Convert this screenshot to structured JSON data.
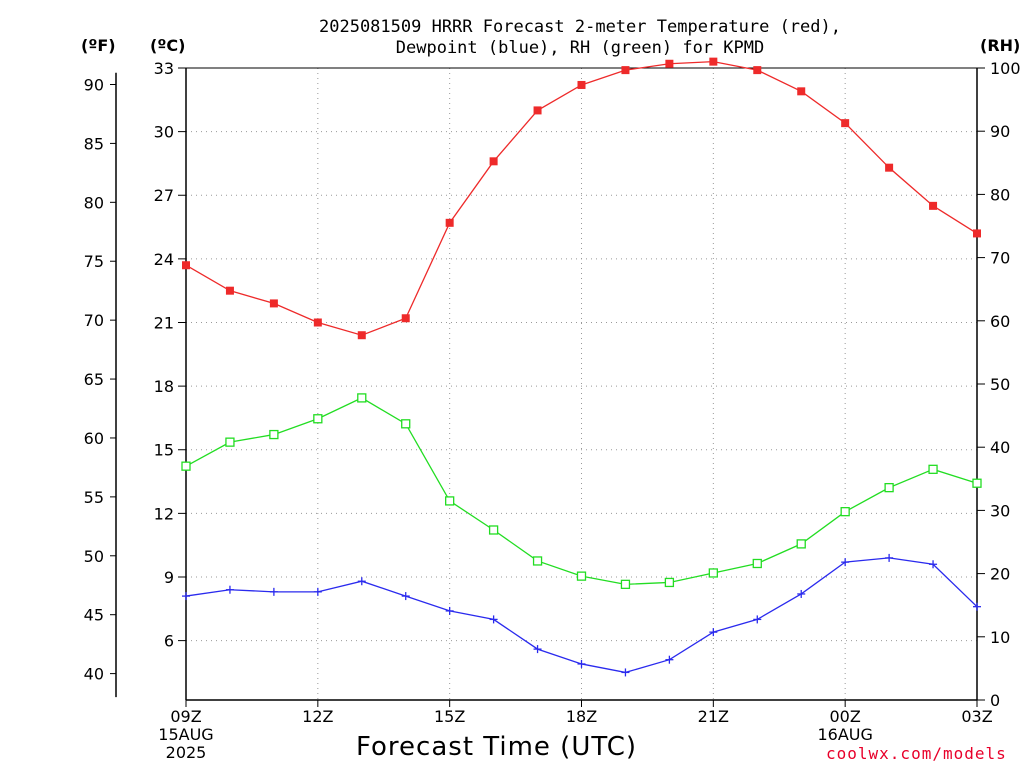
{
  "title_line1": "2025081509 HRRR Forecast 2-meter Temperature (red),",
  "title_line2": "Dewpoint (blue), RH (green) for KPMD",
  "unit_f": "(ºF)",
  "unit_c": "(ºC)",
  "unit_rh": "(RH)",
  "xlabel": "Forecast Time (UTC)",
  "credit": "coolwx.com/models",
  "colors": {
    "temperature": "#ee2a2a",
    "dewpoint": "#2a2aee",
    "rh": "#22dd22",
    "grid": "#999999"
  },
  "chart_data": {
    "type": "line",
    "title": "2025081509 HRRR Forecast 2-meter Temperature (red), Dewpoint (blue), RH (green) for KPMD",
    "xlabel": "Forecast Time (UTC)",
    "x": [
      "09Z",
      "10Z",
      "11Z",
      "12Z",
      "13Z",
      "14Z",
      "15Z",
      "16Z",
      "17Z",
      "18Z",
      "19Z",
      "20Z",
      "21Z",
      "22Z",
      "23Z",
      "00Z",
      "01Z",
      "02Z",
      "03Z"
    ],
    "x_ticks": [
      {
        "index": 0,
        "lines": [
          "09Z",
          "15AUG",
          "2025"
        ]
      },
      {
        "index": 3,
        "lines": [
          "12Z"
        ]
      },
      {
        "index": 6,
        "lines": [
          "15Z"
        ]
      },
      {
        "index": 9,
        "lines": [
          "18Z"
        ]
      },
      {
        "index": 12,
        "lines": [
          "21Z"
        ]
      },
      {
        "index": 15,
        "lines": [
          "00Z",
          "16AUG"
        ]
      },
      {
        "index": 18,
        "lines": [
          "03Z"
        ]
      }
    ],
    "left_axis_f": {
      "label": "(ºF)",
      "ticks": [
        40,
        45,
        50,
        55,
        60,
        65,
        70,
        75,
        80,
        85,
        90
      ]
    },
    "left_axis_c": {
      "label": "(ºC)",
      "ticks": [
        6,
        9,
        12,
        15,
        18,
        21,
        24,
        27,
        30,
        33
      ],
      "ylim": [
        3.2,
        33
      ]
    },
    "right_axis_rh": {
      "label": "(RH)",
      "ticks": [
        0,
        10,
        20,
        30,
        40,
        50,
        60,
        70,
        80,
        90,
        100
      ],
      "ylim": [
        0,
        100
      ]
    },
    "series": [
      {
        "name": "Temperature",
        "axis": "c",
        "marker": "filled-square",
        "values": [
          23.7,
          22.5,
          21.9,
          21.0,
          20.4,
          21.2,
          25.7,
          28.6,
          31.0,
          32.2,
          32.9,
          33.2,
          33.3,
          32.9,
          31.9,
          30.4,
          28.3,
          26.5,
          25.2
        ]
      },
      {
        "name": "Dewpoint",
        "axis": "c",
        "marker": "plus",
        "values": [
          8.1,
          8.4,
          8.3,
          8.3,
          8.8,
          8.1,
          7.4,
          7.0,
          5.6,
          4.9,
          4.5,
          5.1,
          6.4,
          7.0,
          8.2,
          9.7,
          9.9,
          9.6,
          7.6
        ]
      },
      {
        "name": "RH",
        "axis": "rh",
        "marker": "open-square",
        "values": [
          37,
          40.8,
          42,
          44.5,
          47.8,
          43.7,
          31.5,
          26.9,
          22,
          19.6,
          18.3,
          18.6,
          20.1,
          21.6,
          24.7,
          29.8,
          33.6,
          36.5,
          34.3
        ]
      }
    ]
  }
}
